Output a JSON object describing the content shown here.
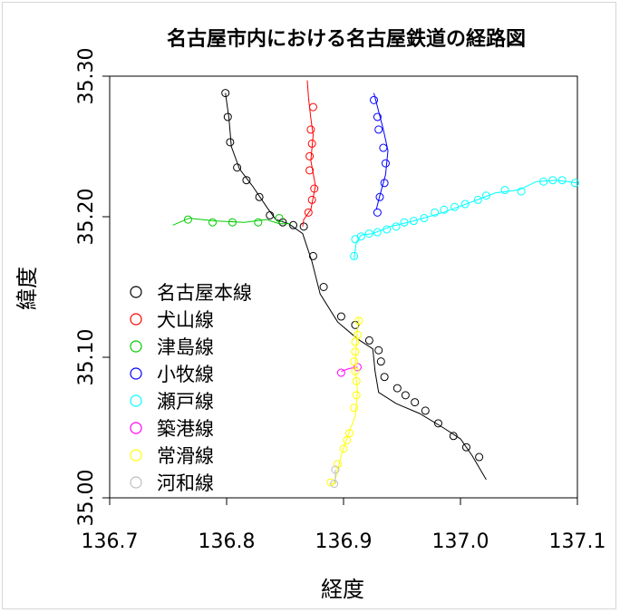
{
  "chart_data": {
    "type": "scatter",
    "title": "名古屋市内における名古屋鉄道の経路図",
    "xlabel": "経度",
    "ylabel": "緯度",
    "xlim": [
      136.7,
      137.1
    ],
    "ylim": [
      35.0,
      35.3
    ],
    "xticks": [
      "136.7",
      "136.8",
      "136.9",
      "137.0",
      "137.1"
    ],
    "yticks": [
      "35.00",
      "35.10",
      "35.20",
      "35.30"
    ],
    "legend_position": "left",
    "series": [
      {
        "name": "名古屋本線",
        "color": "#000000",
        "line": [
          [
            136.799,
            35.288
          ],
          [
            136.802,
            35.27
          ],
          [
            136.804,
            35.25
          ],
          [
            136.811,
            35.234
          ],
          [
            136.822,
            35.222
          ],
          [
            136.835,
            35.206
          ],
          [
            136.842,
            35.198
          ],
          [
            136.853,
            35.195
          ],
          [
            136.865,
            35.188
          ],
          [
            136.873,
            35.168
          ],
          [
            136.88,
            35.145
          ],
          [
            136.895,
            35.125
          ],
          [
            136.912,
            35.113
          ],
          [
            136.925,
            35.106
          ],
          [
            136.927,
            35.09
          ],
          [
            136.93,
            35.075
          ],
          [
            136.945,
            35.067
          ],
          [
            136.965,
            35.06
          ],
          [
            136.985,
            35.05
          ],
          [
            137.0,
            35.042
          ],
          [
            137.01,
            35.03
          ],
          [
            137.022,
            35.013
          ]
        ],
        "points": [
          [
            136.799,
            35.288
          ],
          [
            136.801,
            35.271
          ],
          [
            136.803,
            35.253
          ],
          [
            136.809,
            35.235
          ],
          [
            136.817,
            35.226
          ],
          [
            136.828,
            35.214
          ],
          [
            136.837,
            35.201
          ],
          [
            136.848,
            35.196
          ],
          [
            136.857,
            35.194
          ],
          [
            136.866,
            35.193
          ],
          [
            136.874,
            35.172
          ],
          [
            136.883,
            35.15
          ],
          [
            136.898,
            35.129
          ],
          [
            136.91,
            35.123
          ],
          [
            136.922,
            35.112
          ],
          [
            136.93,
            35.105
          ],
          [
            136.932,
            35.097
          ],
          [
            136.935,
            35.086
          ],
          [
            136.946,
            35.078
          ],
          [
            136.953,
            35.073
          ],
          [
            136.961,
            35.068
          ],
          [
            136.97,
            35.062
          ],
          [
            136.981,
            35.053
          ],
          [
            136.994,
            35.044
          ],
          [
            137.005,
            35.036
          ],
          [
            137.016,
            35.029
          ]
        ]
      },
      {
        "name": "犬山線",
        "color": "#ff0000",
        "line": [
          [
            136.869,
            35.297
          ],
          [
            136.87,
            35.285
          ],
          [
            136.872,
            35.27
          ],
          [
            136.874,
            35.258
          ],
          [
            136.872,
            35.24
          ],
          [
            136.876,
            35.222
          ],
          [
            136.872,
            35.205
          ],
          [
            136.866,
            35.198
          ],
          [
            136.865,
            35.193
          ]
        ],
        "points": [
          [
            136.874,
            35.278
          ],
          [
            136.872,
            35.262
          ],
          [
            136.873,
            35.252
          ],
          [
            136.871,
            35.243
          ],
          [
            136.871,
            35.233
          ],
          [
            136.875,
            35.22
          ],
          [
            136.873,
            35.212
          ],
          [
            136.87,
            35.203
          ]
        ]
      },
      {
        "name": "津島線",
        "color": "#00cc00",
        "line": [
          [
            136.754,
            35.194
          ],
          [
            136.768,
            35.199
          ],
          [
            136.79,
            35.197
          ],
          [
            136.815,
            35.196
          ],
          [
            136.834,
            35.198
          ],
          [
            136.845,
            35.195
          ],
          [
            136.855,
            35.195
          ]
        ],
        "points": [
          [
            136.767,
            35.198
          ],
          [
            136.788,
            35.196
          ],
          [
            136.805,
            35.196
          ],
          [
            136.827,
            35.196
          ],
          [
            136.845,
            35.199
          ]
        ]
      },
      {
        "name": "小牧線",
        "color": "#0000ff",
        "line": [
          [
            136.926,
            35.288
          ],
          [
            136.93,
            35.275
          ],
          [
            136.934,
            35.262
          ],
          [
            136.938,
            35.247
          ],
          [
            136.936,
            35.23
          ],
          [
            136.931,
            35.215
          ],
          [
            136.928,
            35.205
          ]
        ],
        "points": [
          [
            136.926,
            35.283
          ],
          [
            136.929,
            35.271
          ],
          [
            136.93,
            35.262
          ],
          [
            136.934,
            35.249
          ],
          [
            136.936,
            35.238
          ],
          [
            136.935,
            35.224
          ],
          [
            136.931,
            35.214
          ],
          [
            136.929,
            35.203
          ]
        ]
      },
      {
        "name": "瀬戸線",
        "color": "#00ffff",
        "line": [
          [
            136.909,
            35.17
          ],
          [
            136.911,
            35.182
          ],
          [
            136.915,
            35.187
          ],
          [
            136.925,
            35.188
          ],
          [
            136.94,
            35.193
          ],
          [
            136.96,
            35.197
          ],
          [
            136.985,
            35.203
          ],
          [
            137.005,
            35.209
          ],
          [
            137.03,
            35.217
          ],
          [
            137.05,
            35.219
          ],
          [
            137.065,
            35.225
          ],
          [
            137.082,
            35.226
          ],
          [
            137.1,
            35.224
          ]
        ],
        "points": [
          [
            136.909,
            35.172
          ],
          [
            136.91,
            35.184
          ],
          [
            136.915,
            35.186
          ],
          [
            136.922,
            35.188
          ],
          [
            136.929,
            35.189
          ],
          [
            136.937,
            35.191
          ],
          [
            136.945,
            35.193
          ],
          [
            136.952,
            35.196
          ],
          [
            136.96,
            35.197
          ],
          [
            136.969,
            35.199
          ],
          [
            136.978,
            35.203
          ],
          [
            136.986,
            35.205
          ],
          [
            136.995,
            35.207
          ],
          [
            137.004,
            35.209
          ],
          [
            137.015,
            35.212
          ],
          [
            137.022,
            35.215
          ],
          [
            137.038,
            35.219
          ],
          [
            137.052,
            35.218
          ],
          [
            137.071,
            35.225
          ],
          [
            137.079,
            35.226
          ],
          [
            137.087,
            35.226
          ],
          [
            137.098,
            35.224
          ]
        ]
      },
      {
        "name": "築港線",
        "color": "#ff00ff",
        "line": [
          [
            136.898,
            35.09
          ],
          [
            136.905,
            35.092
          ],
          [
            136.912,
            35.093
          ]
        ],
        "points": [
          [
            136.898,
            35.089
          ],
          [
            136.912,
            35.093
          ]
        ]
      },
      {
        "name": "常滑線",
        "color": "#ffff00",
        "line": [
          [
            136.913,
            35.128
          ],
          [
            136.911,
            35.11
          ],
          [
            136.91,
            35.092
          ],
          [
            136.912,
            35.075
          ],
          [
            136.91,
            35.058
          ],
          [
            136.904,
            35.045
          ],
          [
            136.898,
            35.03
          ],
          [
            136.895,
            35.02
          ],
          [
            136.892,
            35.01
          ],
          [
            136.888,
            35.01
          ]
        ],
        "points": [
          [
            136.913,
            35.126
          ],
          [
            136.912,
            35.116
          ],
          [
            136.91,
            35.111
          ],
          [
            136.91,
            35.104
          ],
          [
            136.909,
            35.097
          ],
          [
            136.91,
            35.09
          ],
          [
            136.911,
            35.083
          ],
          [
            136.911,
            35.073
          ],
          [
            136.909,
            35.064
          ],
          [
            136.905,
            35.046
          ],
          [
            136.903,
            35.041
          ],
          [
            136.9,
            35.035
          ],
          [
            136.895,
            35.024
          ],
          [
            136.889,
            35.011
          ]
        ]
      },
      {
        "name": "河和線",
        "color": "#bebebe",
        "line": [
          [
            136.893,
            35.02
          ],
          [
            136.893,
            35.01
          ]
        ],
        "points": [
          [
            136.893,
            35.02
          ],
          [
            136.892,
            35.01
          ]
        ]
      }
    ]
  }
}
